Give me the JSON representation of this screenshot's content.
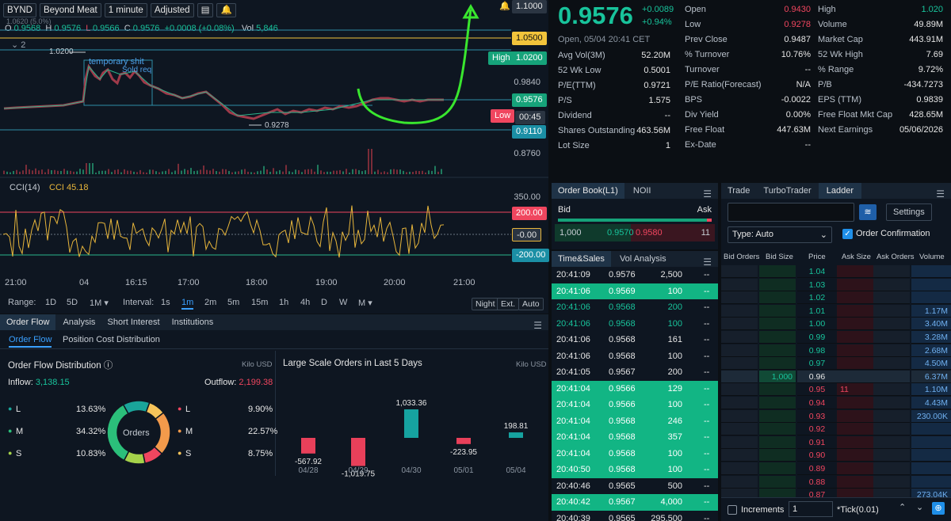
{
  "toolbar": {
    "symbol": "BYND",
    "name": "Beyond Meat",
    "interval": "1 minute",
    "adjust": "Adjusted"
  },
  "ohlc": {
    "o_label": "O",
    "o": "0.9568",
    "h_label": "H",
    "h": "0.9576",
    "l_label": "L",
    "l": "0.9566",
    "c_label": "C",
    "c": "0.9576",
    "chg": "+0.0008 (+0.08%)",
    "vol_label": "Vol",
    "vol": "5,846",
    "collapse": "2",
    "ghost": "1.0620 (5.0%)"
  },
  "chart_labels": {
    "hi_label": "1.0200",
    "lo_label": "0.9278",
    "annot1": "temporary shit",
    "annot2": "Sold req",
    "cci_title": "CCI(14)",
    "cci_val": "CCI 45.18"
  },
  "price_axis": {
    "p1": "1.1000",
    "p2": "1.0500",
    "p3": "1.0200",
    "p4": "0.9840",
    "p5": "0.9576",
    "p6": "00:45",
    "p7": "0.9110",
    "p8": "0.8760",
    "high": "High",
    "low": "Low"
  },
  "cci_axis": {
    "a1": "350.00",
    "a2": "200.00",
    "a3": "-0.00",
    "a4": "-200.00"
  },
  "time_axis": [
    "21:00",
    "04",
    "16:15",
    "17:00",
    "18:00",
    "19:00",
    "20:00",
    "21:00"
  ],
  "range": {
    "label": "Range:",
    "opts": [
      "1D",
      "5D",
      "1M ▾"
    ],
    "interval_label": "Interval:",
    "ints": [
      "1s",
      "1m",
      "2m",
      "5m",
      "15m",
      "1h",
      "4h",
      "D",
      "W",
      "M ▾"
    ],
    "night": "Night",
    "ext": "Ext.",
    "auto": "Auto"
  },
  "quote": {
    "price": "0.9576",
    "chg": "+0.0089",
    "pct": "+0.94%",
    "status": "Open, 05/04 20:41 CET",
    "col1": [
      [
        "Avg Vol(3M)",
        "52.20M"
      ],
      [
        "52 Wk Low",
        "0.5001"
      ],
      [
        "P/E(TTM)",
        "0.9721"
      ],
      [
        "P/S",
        "1.575"
      ],
      [
        "Dividend",
        "--"
      ],
      [
        "Shares Outstanding",
        "463.56M"
      ],
      [
        "Lot Size",
        "1"
      ]
    ],
    "col2": [
      [
        "Open",
        "0.9430"
      ],
      [
        "Low",
        "0.9278"
      ],
      [
        "Prev Close",
        "0.9487"
      ],
      [
        "% Turnover",
        "10.76%"
      ],
      [
        "Turnover",
        "--"
      ],
      [
        "P/E Ratio(Forecast)",
        "N/A"
      ],
      [
        "BPS",
        "-0.0022"
      ],
      [
        "Div Yield",
        "0.00%"
      ],
      [
        "Free Float",
        "447.63M"
      ],
      [
        "Ex-Date",
        "--"
      ]
    ],
    "col3": [
      [
        "High",
        "1.020"
      ],
      [
        "Volume",
        "49.89M"
      ],
      [
        "Market Cap",
        "443.91M"
      ],
      [
        "52 Wk High",
        "7.69"
      ],
      [
        "% Range",
        "9.72%"
      ],
      [
        "P/B",
        "-434.7273"
      ],
      [
        "EPS (TTM)",
        "0.9839"
      ],
      [
        "Free Float Mkt Cap",
        "428.65M"
      ],
      [
        "Next Earnings",
        "05/06/2026"
      ]
    ]
  },
  "book": {
    "tab1": "Order Book(L1)",
    "tab2": "NOII",
    "bid": "Bid",
    "ask": "Ask",
    "bsize": "1,000",
    "bprice": "0.9570",
    "aprice": "0.9580",
    "asize": "11"
  },
  "tns": {
    "tab1": "Time&Sales",
    "tab2": "Vol Analysis",
    "rows": [
      [
        "20:41:09",
        "0.9576",
        "2,500",
        "--",
        0
      ],
      [
        "20:41:06",
        "0.9569",
        "100",
        "--",
        1
      ],
      [
        "20:41:06",
        "0.9568",
        "200",
        "--",
        0
      ],
      [
        "20:41:06",
        "0.9568",
        "100",
        "--",
        0
      ],
      [
        "20:41:06",
        "0.9568",
        "161",
        "--",
        0
      ],
      [
        "20:41:06",
        "0.9568",
        "100",
        "--",
        0
      ],
      [
        "20:41:05",
        "0.9567",
        "200",
        "--",
        0
      ],
      [
        "20:41:04",
        "0.9566",
        "129",
        "--",
        1
      ],
      [
        "20:41:04",
        "0.9566",
        "100",
        "--",
        1
      ],
      [
        "20:41:04",
        "0.9568",
        "246",
        "--",
        1
      ],
      [
        "20:41:04",
        "0.9568",
        "357",
        "--",
        1
      ],
      [
        "20:41:04",
        "0.9568",
        "100",
        "--",
        1
      ],
      [
        "20:40:50",
        "0.9568",
        "100",
        "--",
        1
      ],
      [
        "20:40:46",
        "0.9565",
        "500",
        "--",
        0
      ],
      [
        "20:40:42",
        "0.9567",
        "4,000",
        "--",
        1
      ],
      [
        "20:40:39",
        "0.9565",
        "295,500",
        "--",
        0
      ]
    ]
  },
  "ladder": {
    "tabs": [
      "Trade",
      "TurboTrader",
      "Ladder"
    ],
    "settings": "Settings",
    "type": "Type: Auto",
    "confirm": "Order Confirmation",
    "headers": [
      "Bid Orders",
      "Bid Size",
      "Price",
      "Ask Size",
      "Ask Orders",
      "Volume"
    ],
    "rows": [
      [
        "",
        "",
        "1.04",
        "",
        "",
        ""
      ],
      [
        "",
        "",
        "1.03",
        "",
        "",
        ""
      ],
      [
        "",
        "",
        "1.02",
        "",
        "",
        ""
      ],
      [
        "",
        "",
        "1.01",
        "",
        "",
        "1.17M"
      ],
      [
        "",
        "",
        "1.00",
        "",
        "",
        "3.40M"
      ],
      [
        "",
        "",
        "0.99",
        "",
        "",
        "3.28M"
      ],
      [
        "",
        "",
        "0.98",
        "",
        "",
        "2.68M"
      ],
      [
        "",
        "",
        "0.97",
        "",
        "",
        "4.50M"
      ],
      [
        "",
        "1,000",
        "0.96",
        "",
        "",
        "6.37M"
      ],
      [
        "",
        "",
        "0.95",
        "11",
        "",
        "1.10M"
      ],
      [
        "",
        "",
        "0.94",
        "",
        "",
        "4.43M"
      ],
      [
        "",
        "",
        "0.93",
        "",
        "",
        "230.00K"
      ],
      [
        "",
        "",
        "0.92",
        "",
        "",
        ""
      ],
      [
        "",
        "",
        "0.91",
        "",
        "",
        ""
      ],
      [
        "",
        "",
        "0.90",
        "",
        "",
        ""
      ],
      [
        "",
        "",
        "0.89",
        "",
        "",
        ""
      ],
      [
        "",
        "",
        "0.88",
        "",
        "",
        ""
      ],
      [
        "",
        "",
        "0.87",
        "",
        "",
        "273.04K"
      ]
    ],
    "increments": "Increments",
    "inc_val": "1",
    "tick": "*Tick(0.01)"
  },
  "orderflow": {
    "tabs": [
      "Order Flow",
      "Analysis",
      "Short Interest",
      "Institutions"
    ],
    "subtabs": [
      "Order Flow",
      "Position Cost Distribution"
    ],
    "dist_title": "Order Flow Distribution",
    "unit": "Kilo USD",
    "inflow_label": "Inflow:",
    "inflow": "3,138.15",
    "outflow_label": "Outflow:",
    "outflow": "2,199.38",
    "left": [
      [
        "L",
        "13.63%"
      ],
      [
        "M",
        "34.32%"
      ],
      [
        "S",
        "10.83%"
      ]
    ],
    "right": [
      [
        "L",
        "9.90%"
      ],
      [
        "M",
        "22.57%"
      ],
      [
        "S",
        "8.75%"
      ]
    ],
    "donut": "Orders",
    "large_title": "Large Scale Orders in Last 5 Days",
    "unit2": "Kilo USD"
  },
  "chart_data": {
    "type": "bar",
    "categories": [
      "04/28",
      "04/29",
      "04/30",
      "05/01",
      "05/04"
    ],
    "values": [
      -567.92,
      -1019.75,
      1033.36,
      -223.95,
      198.81
    ],
    "title": "Large Scale Orders in Last 5 Days",
    "ylabel": "Kilo USD"
  },
  "colors": {
    "green": "#18c39b",
    "red": "#f0465f",
    "yellow": "#f2c43b",
    "bg": "#0b0f14"
  }
}
